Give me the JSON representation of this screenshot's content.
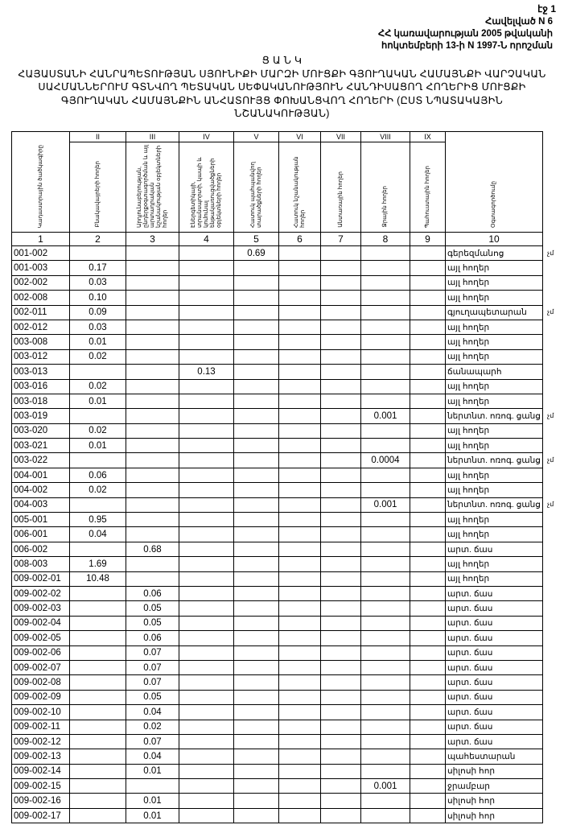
{
  "page_label": "էջ 1",
  "annex": [
    "Հավելված N 6",
    "ՀՀ կառավարության 2005 թվականի",
    "հոկտեմբերի 13-ի N 1997-Ն որոշման"
  ],
  "title": {
    "heading": "Ց Ա Ն Կ",
    "text": "ՀԱՅԱՍՏԱՆԻ ՀԱՆՐԱՊԵՏՈՒԹՅԱՆ ՍՅՈՒՆԻՔԻ ՄԱՐԶԻ ՄՈՒՑՔԻ ԳՅՈՒՂԱԿԱՆ ՀԱՄԱՅՆՔԻ ՎԱՐՉԱԿԱՆ ՍԱՀՄԱՆՆԵՐՈՒՄ ԳՏՆՎՈՂ ՊԵՏԱԿԱՆ ՍԵՓԱԿԱՆՈՒԹՅՈՒՆ ՀԱՆԴԻՍԱՑՈՂ ՀՈՂԵՐԻՑ ՄՈՒՑՔԻ ԳՅՈՒՂԱԿԱՆ ՀԱՄԱՅՆՔԻՆ ԱՆՀԱՏՈՒՅՑ ՓՈԽԱՆՑՎՈՂ ՀՈՂԵՐԻ (ԸՍՏ ՆՊԱՏԱԿԱՅԻՆ ՆՇԱՆԱԿՈՒԹՅԱՆ)"
  },
  "table": {
    "roman": [
      "II",
      "III",
      "IV",
      "V",
      "VI",
      "VII",
      "VIII",
      "IX"
    ],
    "headers": [
      "Կադաստրային ծածկագիրը",
      "Բնակավայրերի հողեր",
      "Արդյունաբերության, ընդերքօգտագործման և այլ արտադրական նշանակության օբյեկտների հողեր",
      "Էներգետիկայի, տրանսպորտի, կապի և կոմունալ ենթակառուցվածքների օբյեկտների հողեր",
      "Հատուկ պահպանվող տարածքների հողեր",
      "Հատուկ նշանակության հողեր",
      "Անտառային հողեր",
      "Ջրային հողեր",
      "Պահուստային հողեր",
      "Օգտագործումը"
    ],
    "numbers": [
      "1",
      "2",
      "3",
      "4",
      "5",
      "6",
      "7",
      "8",
      "9",
      "10"
    ],
    "rows": [
      [
        "001-002",
        "",
        "",
        "",
        "0.69",
        "",
        "",
        "",
        "",
        "գերեզմանոց",
        "չմ"
      ],
      [
        "001-003",
        "0.17",
        "",
        "",
        "",
        "",
        "",
        "",
        "",
        "այլ հողեր",
        ""
      ],
      [
        "002-002",
        "0.03",
        "",
        "",
        "",
        "",
        "",
        "",
        "",
        "այլ հողեր",
        ""
      ],
      [
        "002-008",
        "0.10",
        "",
        "",
        "",
        "",
        "",
        "",
        "",
        "այլ հողեր",
        ""
      ],
      [
        "002-011",
        "0.09",
        "",
        "",
        "",
        "",
        "",
        "",
        "",
        "գյուղապետարան",
        "չմ"
      ],
      [
        "002-012",
        "0.03",
        "",
        "",
        "",
        "",
        "",
        "",
        "",
        "այլ հողեր",
        ""
      ],
      [
        "003-008",
        "0.01",
        "",
        "",
        "",
        "",
        "",
        "",
        "",
        "այլ հողեր",
        ""
      ],
      [
        "003-012",
        "0.02",
        "",
        "",
        "",
        "",
        "",
        "",
        "",
        "այլ հողեր",
        ""
      ],
      [
        "003-013",
        "",
        "",
        "0.13",
        "",
        "",
        "",
        "",
        "",
        "ճանապարհ",
        ""
      ],
      [
        "003-016",
        "0.02",
        "",
        "",
        "",
        "",
        "",
        "",
        "",
        "այլ հողեր",
        ""
      ],
      [
        "003-018",
        "0.01",
        "",
        "",
        "",
        "",
        "",
        "",
        "",
        "այլ հողեր",
        ""
      ],
      [
        "003-019",
        "",
        "",
        "",
        "",
        "",
        "",
        "0.001",
        "",
        "ներտնտ. ոռոգ. ցանց",
        "չմ"
      ],
      [
        "003-020",
        "0.02",
        "",
        "",
        "",
        "",
        "",
        "",
        "",
        "այլ հողեր",
        ""
      ],
      [
        "003-021",
        "0.01",
        "",
        "",
        "",
        "",
        "",
        "",
        "",
        "այլ հողեր",
        ""
      ],
      [
        "003-022",
        "",
        "",
        "",
        "",
        "",
        "",
        "0.0004",
        "",
        "ներտնտ. ոռոգ. ցանց",
        "չմ"
      ],
      [
        "004-001",
        "0.06",
        "",
        "",
        "",
        "",
        "",
        "",
        "",
        "այլ հողեր",
        ""
      ],
      [
        "004-002",
        "0.02",
        "",
        "",
        "",
        "",
        "",
        "",
        "",
        "այլ հողեր",
        ""
      ],
      [
        "004-003",
        "",
        "",
        "",
        "",
        "",
        "",
        "0.001",
        "",
        "ներտնտ. ոռոգ. ցանց",
        "չմ"
      ],
      [
        "005-001",
        "0.95",
        "",
        "",
        "",
        "",
        "",
        "",
        "",
        "այլ հողեր",
        ""
      ],
      [
        "006-001",
        "0.04",
        "",
        "",
        "",
        "",
        "",
        "",
        "",
        "այլ հողեր",
        ""
      ],
      [
        "006-002",
        "",
        "0.68",
        "",
        "",
        "",
        "",
        "",
        "",
        "արտ. ճաս",
        ""
      ],
      [
        "008-003",
        "1.69",
        "",
        "",
        "",
        "",
        "",
        "",
        "",
        "այլ հողեր",
        ""
      ],
      [
        "009-002-01",
        "10.48",
        "",
        "",
        "",
        "",
        "",
        "",
        "",
        "այլ հողեր",
        ""
      ],
      [
        "009-002-02",
        "",
        "0.06",
        "",
        "",
        "",
        "",
        "",
        "",
        "արտ. ճաս",
        ""
      ],
      [
        "009-002-03",
        "",
        "0.05",
        "",
        "",
        "",
        "",
        "",
        "",
        "արտ. ճաս",
        ""
      ],
      [
        "009-002-04",
        "",
        "0.05",
        "",
        "",
        "",
        "",
        "",
        "",
        "արտ. ճաս",
        ""
      ],
      [
        "009-002-05",
        "",
        "0.06",
        "",
        "",
        "",
        "",
        "",
        "",
        "արտ. ճաս",
        ""
      ],
      [
        "009-002-06",
        "",
        "0.07",
        "",
        "",
        "",
        "",
        "",
        "",
        "արտ. ճաս",
        ""
      ],
      [
        "009-002-07",
        "",
        "0.07",
        "",
        "",
        "",
        "",
        "",
        "",
        "արտ. ճաս",
        ""
      ],
      [
        "009-002-08",
        "",
        "0.07",
        "",
        "",
        "",
        "",
        "",
        "",
        "արտ. ճաս",
        ""
      ],
      [
        "009-002-09",
        "",
        "0.05",
        "",
        "",
        "",
        "",
        "",
        "",
        "արտ. ճաս",
        ""
      ],
      [
        "009-002-10",
        "",
        "0.04",
        "",
        "",
        "",
        "",
        "",
        "",
        "արտ. ճաս",
        ""
      ],
      [
        "009-002-11",
        "",
        "0.02",
        "",
        "",
        "",
        "",
        "",
        "",
        "արտ. ճաս",
        ""
      ],
      [
        "009-002-12",
        "",
        "0.07",
        "",
        "",
        "",
        "",
        "",
        "",
        "արտ. ճաս",
        ""
      ],
      [
        "009-002-13",
        "",
        "0.04",
        "",
        "",
        "",
        "",
        "",
        "",
        "պահեստարան",
        ""
      ],
      [
        "009-002-14",
        "",
        "0.01",
        "",
        "",
        "",
        "",
        "",
        "",
        "սիլոսի հոր",
        ""
      ],
      [
        "009-002-15",
        "",
        "",
        "",
        "",
        "",
        "",
        "0.001",
        "",
        "ջրամբար",
        ""
      ],
      [
        "009-002-16",
        "",
        "0.01",
        "",
        "",
        "",
        "",
        "",
        "",
        "սիլոսի հոր",
        ""
      ],
      [
        "009-002-17",
        "",
        "0.01",
        "",
        "",
        "",
        "",
        "",
        "",
        "սիլոսի հոր",
        ""
      ]
    ]
  }
}
